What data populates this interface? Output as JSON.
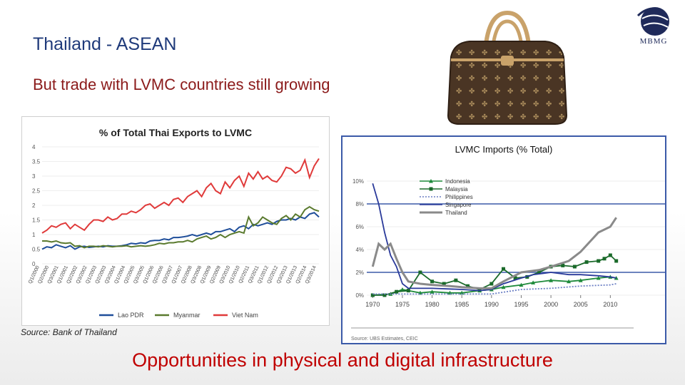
{
  "slide": {
    "title": "Thailand - ASEAN",
    "subtitle": "But trade with LVMC countries still growing",
    "logo_text": "MBMG",
    "source": "Source: Bank of Thailand",
    "footer": "Opportunities in physical and digital infrastructure"
  },
  "chart_data": [
    {
      "type": "line",
      "title": "% of Total Thai Exports to LVMC",
      "ylim": [
        0,
        4
      ],
      "yticks": [
        "0",
        "0.5",
        "1",
        "1.5",
        "2",
        "2.5",
        "3",
        "3.5",
        "4"
      ],
      "xticks": [
        "Q1/2000",
        "Q2/2000",
        "Q3/2001",
        "Q1/2001",
        "Q2/2002",
        "Q3/2002",
        "Q1/2003",
        "Q2/2003",
        "Q3/2004",
        "Q1/2004",
        "Q2/2005",
        "Q3/2005",
        "Q1/2006",
        "Q2/2006",
        "Q3/2007",
        "Q1/2007",
        "Q2/2008",
        "Q3/2008",
        "Q1/2009",
        "Q2/2009",
        "Q3/2010",
        "Q1/2010",
        "Q2/2011",
        "Q3/2011",
        "Q1/2012",
        "Q2/2012",
        "Q3/2013",
        "Q1/2013",
        "Q2/2014",
        "Q3/2014"
      ],
      "legend_position": "bottom",
      "series": [
        {
          "name": "Lao PDR",
          "color": "#1f4e9a",
          "values": [
            0.5,
            0.58,
            0.55,
            0.65,
            0.6,
            0.55,
            0.62,
            0.5,
            0.58,
            0.6,
            0.56,
            0.58,
            0.6,
            0.58,
            0.62,
            0.6,
            0.6,
            0.62,
            0.65,
            0.7,
            0.68,
            0.72,
            0.7,
            0.78,
            0.8,
            0.8,
            0.85,
            0.82,
            0.9,
            0.9,
            0.92,
            0.95,
            1.0,
            0.95,
            1.0,
            1.05,
            1.0,
            1.1,
            1.1,
            1.15,
            1.2,
            1.1,
            1.25,
            1.3,
            1.2,
            1.35,
            1.3,
            1.35,
            1.4,
            1.35,
            1.45,
            1.5,
            1.5,
            1.55,
            1.5,
            1.6,
            1.55,
            1.7,
            1.75,
            1.6
          ]
        },
        {
          "name": "Myanmar",
          "color": "#5a7a2e",
          "values": [
            0.78,
            0.78,
            0.75,
            0.78,
            0.72,
            0.7,
            0.72,
            0.6,
            0.62,
            0.55,
            0.6,
            0.6,
            0.58,
            0.62,
            0.6,
            0.58,
            0.6,
            0.6,
            0.62,
            0.58,
            0.6,
            0.62,
            0.6,
            0.62,
            0.65,
            0.7,
            0.68,
            0.72,
            0.72,
            0.75,
            0.75,
            0.8,
            0.75,
            0.85,
            0.9,
            0.95,
            0.85,
            0.9,
            1.0,
            0.9,
            1.0,
            1.05,
            1.1,
            1.05,
            1.6,
            1.3,
            1.4,
            1.6,
            1.5,
            1.4,
            1.35,
            1.55,
            1.65,
            1.5,
            1.7,
            1.6,
            1.85,
            1.95,
            1.85,
            1.8
          ]
        },
        {
          "name": "Viet Nam",
          "color": "#e03a3a",
          "values": [
            1.05,
            1.15,
            1.3,
            1.25,
            1.35,
            1.4,
            1.2,
            1.35,
            1.25,
            1.15,
            1.35,
            1.5,
            1.5,
            1.45,
            1.6,
            1.5,
            1.55,
            1.7,
            1.7,
            1.8,
            1.75,
            1.85,
            2.0,
            2.05,
            1.9,
            2.0,
            2.1,
            2.0,
            2.2,
            2.25,
            2.1,
            2.3,
            2.4,
            2.5,
            2.3,
            2.6,
            2.75,
            2.5,
            2.4,
            2.8,
            2.6,
            2.85,
            3.0,
            2.65,
            3.1,
            2.9,
            3.15,
            2.9,
            3.0,
            2.85,
            2.8,
            3.0,
            3.3,
            3.25,
            3.1,
            3.2,
            3.55,
            2.95,
            3.35,
            3.6
          ]
        }
      ]
    },
    {
      "type": "line",
      "title": "LVMC Imports (% Total)",
      "ylim": [
        0,
        10
      ],
      "yticks": [
        "0%",
        "2%",
        "4%",
        "6%",
        "8%",
        "10%"
      ],
      "xticks": [
        "1970",
        "1975",
        "1980",
        "1985",
        "1990",
        "1995",
        "2000",
        "2005",
        "2010"
      ],
      "xlim": [
        1969,
        2012
      ],
      "source_note": "Source: UBS Estimates, CEIC",
      "legend_position": "top-left",
      "series": [
        {
          "name": "Indonesia",
          "color": "#1e8a3a",
          "style": "triangle",
          "x": [
            1970,
            1973,
            1975,
            1978,
            1980,
            1983,
            1985,
            1988,
            1990,
            1992,
            1995,
            1997,
            2000,
            2003,
            2005,
            2008,
            2010,
            2011
          ],
          "values": [
            0.0,
            0.1,
            0.5,
            0.2,
            0.3,
            0.2,
            0.2,
            0.4,
            0.5,
            0.7,
            0.9,
            1.1,
            1.3,
            1.2,
            1.3,
            1.5,
            1.6,
            1.5
          ]
        },
        {
          "name": "Malaysia",
          "color": "#1a6a2a",
          "style": "square",
          "x": [
            1970,
            1972,
            1974,
            1976,
            1978,
            1980,
            1982,
            1984,
            1986,
            1988,
            1990,
            1992,
            1994,
            1996,
            1998,
            2000,
            2002,
            2004,
            2006,
            2008,
            2009,
            2010,
            2011
          ],
          "values": [
            0.0,
            0.0,
            0.3,
            0.4,
            2.0,
            1.2,
            1.0,
            1.3,
            0.8,
            0.5,
            1.0,
            2.3,
            1.5,
            1.6,
            2.0,
            2.5,
            2.6,
            2.5,
            2.9,
            3.0,
            3.2,
            3.5,
            3.0
          ]
        },
        {
          "name": "Philippines",
          "color": "#6b7fc4",
          "style": "dotted",
          "x": [
            1970,
            1975,
            1980,
            1985,
            1990,
            1995,
            2000,
            2005,
            2010,
            2011
          ],
          "values": [
            0.1,
            0.1,
            0.1,
            0.1,
            0.1,
            0.5,
            0.6,
            0.8,
            0.9,
            1.0
          ]
        },
        {
          "name": "Singapore",
          "color": "#2a3a9a",
          "style": "solid",
          "x": [
            1970,
            1971,
            1972,
            1973,
            1974,
            1975,
            1976,
            1980,
            1985,
            1988,
            1990,
            1992,
            1995,
            1997,
            2000,
            2003,
            2005,
            2008,
            2010,
            2011
          ],
          "values": [
            9.8,
            8.0,
            5.5,
            3.5,
            2.5,
            1.0,
            0.6,
            0.6,
            0.5,
            0.4,
            0.5,
            1.0,
            1.5,
            1.8,
            2.0,
            1.8,
            1.8,
            1.7,
            1.6,
            1.5
          ]
        },
        {
          "name": "Thailand",
          "color": "#8a8a8a",
          "style": "thick",
          "x": [
            1970,
            1971,
            1972,
            1973,
            1974,
            1975,
            1976,
            1978,
            1980,
            1983,
            1985,
            1988,
            1990,
            1992,
            1995,
            1998,
            2000,
            2003,
            2005,
            2008,
            2010,
            2011
          ],
          "values": [
            2.5,
            4.5,
            4.0,
            4.5,
            3.2,
            2.0,
            1.2,
            1.0,
            0.9,
            0.8,
            0.7,
            0.6,
            0.6,
            1.2,
            2.0,
            2.2,
            2.5,
            3.0,
            3.8,
            5.5,
            6.0,
            6.8
          ]
        }
      ]
    }
  ]
}
